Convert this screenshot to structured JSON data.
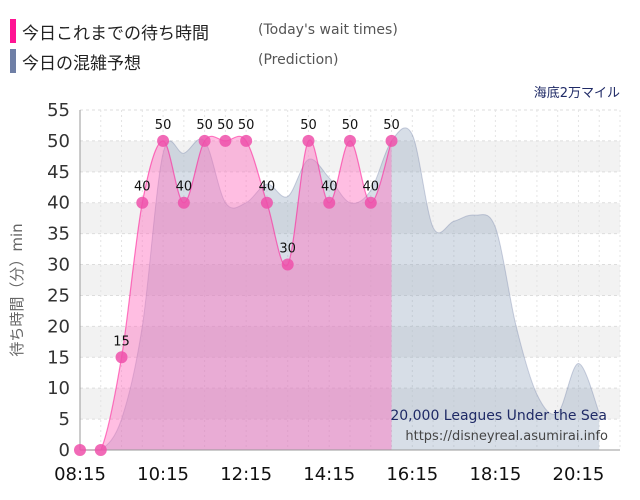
{
  "legend": {
    "actual_label": "今日これまでの待ち時間",
    "actual_sub": "(Today's wait times)",
    "prediction_label": "今日の混雑予想",
    "prediction_sub": "(Prediction)"
  },
  "attraction_name": "海底2万マイル",
  "credits": {
    "english_name": "20,000 Leagues Under the Sea",
    "url": "https://disneyreal.asumirai.info"
  },
  "colors": {
    "actual": "#ff1493",
    "prediction": "#6f7fa6",
    "actual_fill": "rgba(255,110,190,0.45)",
    "prediction_fill": "rgba(140,160,185,0.35)"
  },
  "chart_data": {
    "type": "area",
    "ylabel": "待ち時間（分）min",
    "ylim": [
      0,
      55
    ],
    "yticks": [
      0,
      5,
      10,
      15,
      20,
      25,
      30,
      35,
      40,
      45,
      50,
      55
    ],
    "xlim": [
      "08:15",
      "21:15"
    ],
    "xticks": [
      "08:15",
      "10:15",
      "12:15",
      "14:15",
      "16:15",
      "18:15",
      "20:15"
    ],
    "grid": true,
    "series": [
      {
        "name": "今日これまでの待ち時間",
        "x": [
          "08:15",
          "08:45",
          "09:15",
          "09:45",
          "10:15",
          "10:45",
          "11:15",
          "11:45",
          "12:15",
          "12:45",
          "13:15",
          "13:45",
          "14:15",
          "14:45",
          "15:15",
          "15:45"
        ],
        "values": [
          0,
          0,
          15,
          40,
          50,
          40,
          50,
          50,
          50,
          40,
          30,
          50,
          40,
          50,
          40,
          50
        ],
        "labels": [
          "",
          "",
          "15",
          "40",
          "50",
          "40",
          "50",
          "50",
          "50",
          "40",
          "30",
          "50",
          "40",
          "50",
          "40",
          "50"
        ]
      },
      {
        "name": "今日の混雑予想",
        "x": [
          "08:15",
          "08:45",
          "09:15",
          "09:45",
          "10:15",
          "10:45",
          "11:15",
          "11:45",
          "12:15",
          "12:45",
          "13:15",
          "13:45",
          "14:15",
          "14:45",
          "15:15",
          "15:45",
          "16:15",
          "16:45",
          "17:15",
          "17:45",
          "18:15",
          "18:45",
          "19:15",
          "19:45",
          "20:15",
          "20:45"
        ],
        "values": [
          0,
          0,
          5,
          20,
          48,
          48,
          50,
          40,
          40,
          43,
          41,
          47,
          44,
          40,
          42,
          50,
          51,
          36,
          37,
          38,
          36,
          20,
          9,
          6,
          14,
          6
        ]
      }
    ]
  }
}
